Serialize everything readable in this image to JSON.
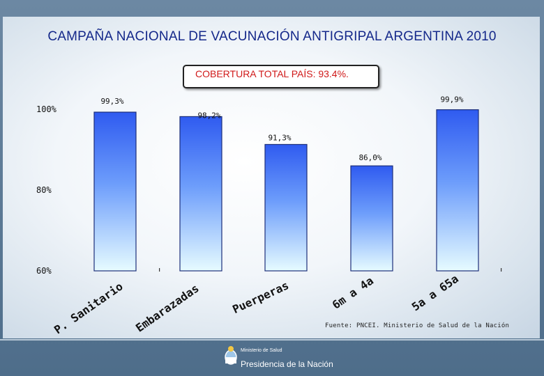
{
  "title": "CAMPAÑA  NACIONAL DE VACUNACIÓN ANTIGRIPAL ARGENTINA 2010",
  "coverage_label": "COBERTURA TOTAL PAÍS: 93.4%.",
  "source": "Fuente: PNCEI. Ministerio de Salud de la Nación",
  "footer": {
    "ministry": "Ministerio de Salud",
    "presidency": "Presidencia de la Nación"
  },
  "colors": {
    "bar_top": "#2f5bf0",
    "bar_bottom": "#e6fbff",
    "title": "#14288a",
    "coverage_text": "#d01919"
  },
  "chart_data": {
    "type": "bar",
    "title": "CAMPAÑA  NACIONAL DE VACUNACIÓN ANTIGRIPAL ARGENTINA 2010",
    "categories": [
      "P. Sanitario",
      "Embarazadas",
      "Puerperas",
      "6m a 4a",
      "5a a 65a"
    ],
    "values": [
      99.3,
      98.2,
      91.3,
      86.0,
      99.9
    ],
    "value_labels": [
      "99,3%",
      "98,2%",
      "91,3%",
      "86,0%",
      "99,9%"
    ],
    "ytick_labels": [
      "60%",
      "80%",
      "100%"
    ],
    "yticks": [
      60,
      80,
      100
    ],
    "ylim": [
      60,
      100
    ],
    "xlabel": "",
    "ylabel": "",
    "grid": false
  }
}
